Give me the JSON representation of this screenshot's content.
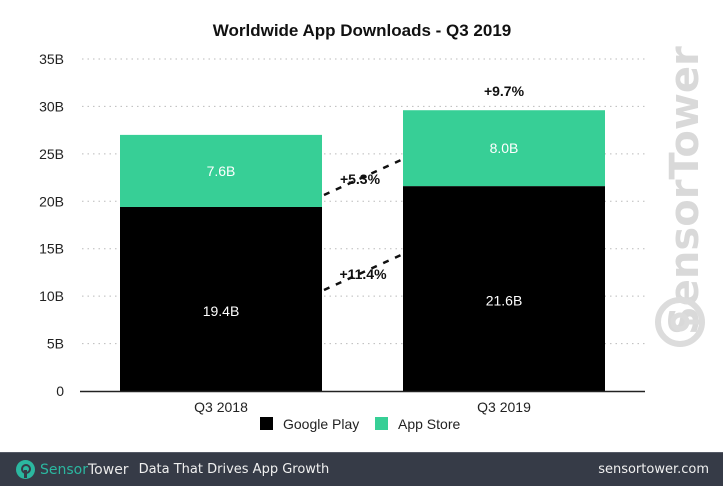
{
  "chart_data": {
    "type": "bar",
    "stacked": true,
    "title": "Worldwide App Downloads - Q3 2019",
    "categories": [
      "Q3 2018",
      "Q3 2019"
    ],
    "series": [
      {
        "name": "Google Play",
        "color": "#000000",
        "values": [
          19.4,
          21.6
        ],
        "labels": [
          "19.4B",
          "21.6B"
        ]
      },
      {
        "name": "App Store",
        "color": "#37cf96",
        "values": [
          7.6,
          8.0
        ],
        "labels": [
          "7.6B",
          "8.0B"
        ]
      }
    ],
    "xlabel": "",
    "ylabel": "",
    "ylim": [
      0,
      35
    ],
    "yticks": [
      0,
      5,
      10,
      15,
      20,
      25,
      30,
      35
    ],
    "ytick_labels": [
      "0",
      "5B",
      "10B",
      "15B",
      "20B",
      "25B",
      "30B",
      "35B"
    ],
    "grid": true,
    "legend": {
      "placement": "bottom",
      "entries": [
        "Google Play",
        "App Store"
      ]
    },
    "annotations": {
      "total_growth": "+9.7%",
      "app_store_growth": "+5.3%",
      "google_play_growth": "+11.4%"
    }
  },
  "watermark": "SensorTower",
  "footer": {
    "brand_part1": "Sensor",
    "brand_part2": "Tower",
    "tagline": "Data That Drives App Growth",
    "website": "sensortower.com",
    "brand_color": "#2bb7a0",
    "background": "#363b47"
  }
}
